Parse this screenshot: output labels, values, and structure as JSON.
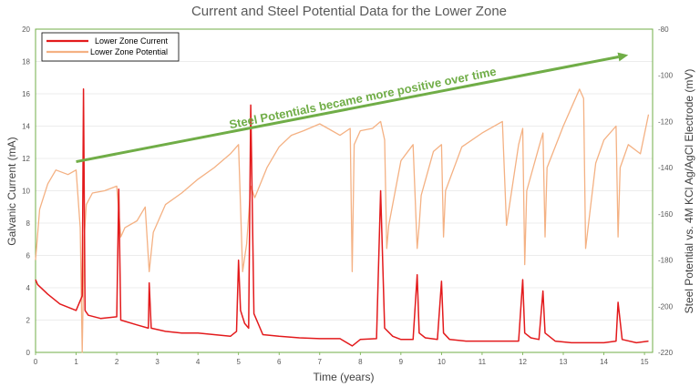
{
  "chart_data": {
    "type": "line",
    "title": "Current and Steel Potential Data for the Lower Zone",
    "xlabel": "Time (years)",
    "ylabel": "Galvanic Current (mA)",
    "ylabel_right": "Steel Potential vs. 4M KCl Ag/AgCl Electrode (mV)",
    "xlim": [
      0,
      15.2
    ],
    "ylim": [
      0,
      20
    ],
    "ylim_right": [
      -220,
      -80
    ],
    "x_ticks": [
      0,
      1,
      2,
      3,
      4,
      5,
      6,
      7,
      8,
      9,
      10,
      11,
      12,
      13,
      14,
      15
    ],
    "y_ticks": [
      0,
      2,
      4,
      6,
      8,
      10,
      12,
      14,
      16,
      18,
      20
    ],
    "y_ticks_right": [
      -220,
      -200,
      -180,
      -160,
      -140,
      -120,
      -100,
      -80
    ],
    "legend_position": "top-left",
    "colors": {
      "current": "#e31a1c",
      "potential": "#f4b183",
      "annotation": "#70ad47",
      "frame": "#70ad47"
    },
    "annotation": {
      "text": "Steel Potentials became more positive over time",
      "arrow_from": [
        1.0,
        11.8
      ],
      "arrow_to": [
        14.6,
        18.4
      ]
    },
    "series": [
      {
        "name": "Lower Zone Current",
        "axis": "left",
        "x": [
          0,
          0.05,
          0.3,
          0.6,
          1.0,
          1.15,
          1.18,
          1.22,
          1.3,
          1.6,
          2.0,
          2.05,
          2.1,
          2.5,
          2.78,
          2.8,
          2.85,
          3.2,
          3.6,
          4.0,
          4.4,
          4.8,
          4.95,
          5.0,
          5.05,
          5.15,
          5.25,
          5.3,
          5.38,
          5.6,
          6.0,
          6.5,
          7.0,
          7.5,
          7.8,
          8.0,
          8.4,
          8.5,
          8.6,
          8.8,
          9.0,
          9.3,
          9.4,
          9.45,
          9.6,
          9.9,
          10.0,
          10.05,
          10.2,
          10.6,
          11.0,
          11.5,
          11.9,
          12.0,
          12.05,
          12.2,
          12.4,
          12.5,
          12.55,
          12.8,
          13.2,
          13.5,
          13.8,
          14.0,
          14.3,
          14.35,
          14.45,
          14.8,
          15.1
        ],
        "values": [
          4.5,
          4.2,
          3.6,
          3.0,
          2.6,
          3.5,
          16.3,
          2.6,
          2.3,
          2.1,
          2.2,
          10.1,
          2.0,
          1.7,
          1.5,
          4.3,
          1.5,
          1.3,
          1.2,
          1.2,
          1.1,
          1.0,
          1.3,
          5.7,
          2.6,
          1.8,
          1.5,
          15.3,
          2.4,
          1.1,
          1.0,
          0.9,
          0.85,
          0.85,
          0.4,
          0.8,
          0.85,
          10.0,
          1.5,
          1.0,
          0.8,
          0.8,
          4.8,
          1.2,
          0.9,
          0.8,
          4.4,
          1.2,
          0.8,
          0.7,
          0.7,
          0.7,
          0.7,
          4.5,
          1.2,
          0.9,
          0.8,
          3.8,
          1.2,
          0.7,
          0.6,
          0.6,
          0.6,
          0.6,
          0.7,
          3.1,
          0.8,
          0.6,
          0.7
        ]
      },
      {
        "name": "Lower Zone Potential",
        "axis": "right",
        "x": [
          0,
          0.1,
          0.3,
          0.5,
          0.8,
          1.0,
          1.1,
          1.15,
          1.2,
          1.25,
          1.4,
          1.7,
          2.0,
          2.1,
          2.2,
          2.5,
          2.7,
          2.8,
          2.9,
          3.2,
          3.6,
          4.0,
          4.4,
          4.8,
          5.0,
          5.1,
          5.2,
          5.3,
          5.4,
          5.7,
          6.0,
          6.3,
          6.6,
          7.0,
          7.2,
          7.5,
          7.75,
          7.8,
          7.85,
          8.0,
          8.3,
          8.5,
          8.6,
          8.65,
          8.7,
          9.0,
          9.3,
          9.4,
          9.45,
          9.5,
          9.8,
          10.0,
          10.05,
          10.1,
          10.5,
          11.0,
          11.5,
          11.6,
          11.9,
          12.0,
          12.05,
          12.1,
          12.4,
          12.5,
          12.55,
          12.6,
          13.0,
          13.4,
          13.5,
          13.55,
          13.8,
          14.0,
          14.3,
          14.35,
          14.4,
          14.6,
          14.9,
          15.1
        ],
        "values": [
          -180,
          -158,
          -147,
          -141,
          -143,
          -141,
          -166,
          -220,
          -170,
          -156,
          -151,
          -150,
          -148,
          -170,
          -166,
          -163,
          -157,
          -185,
          -168,
          -156,
          -151,
          -145,
          -140,
          -134,
          -130,
          -185,
          -173,
          -148,
          -153,
          -140,
          -131,
          -126,
          -124,
          -121,
          -123,
          -126,
          -123,
          -185,
          -130,
          -124,
          -123,
          -120,
          -128,
          -175,
          -165,
          -137,
          -130,
          -175,
          -165,
          -152,
          -133,
          -130,
          -170,
          -150,
          -131,
          -125,
          -120,
          -165,
          -130,
          -123,
          -182,
          -150,
          -131,
          -125,
          -170,
          -140,
          -122,
          -106,
          -110,
          -175,
          -138,
          -128,
          -122,
          -170,
          -140,
          -130,
          -134,
          -117
        ]
      }
    ]
  }
}
